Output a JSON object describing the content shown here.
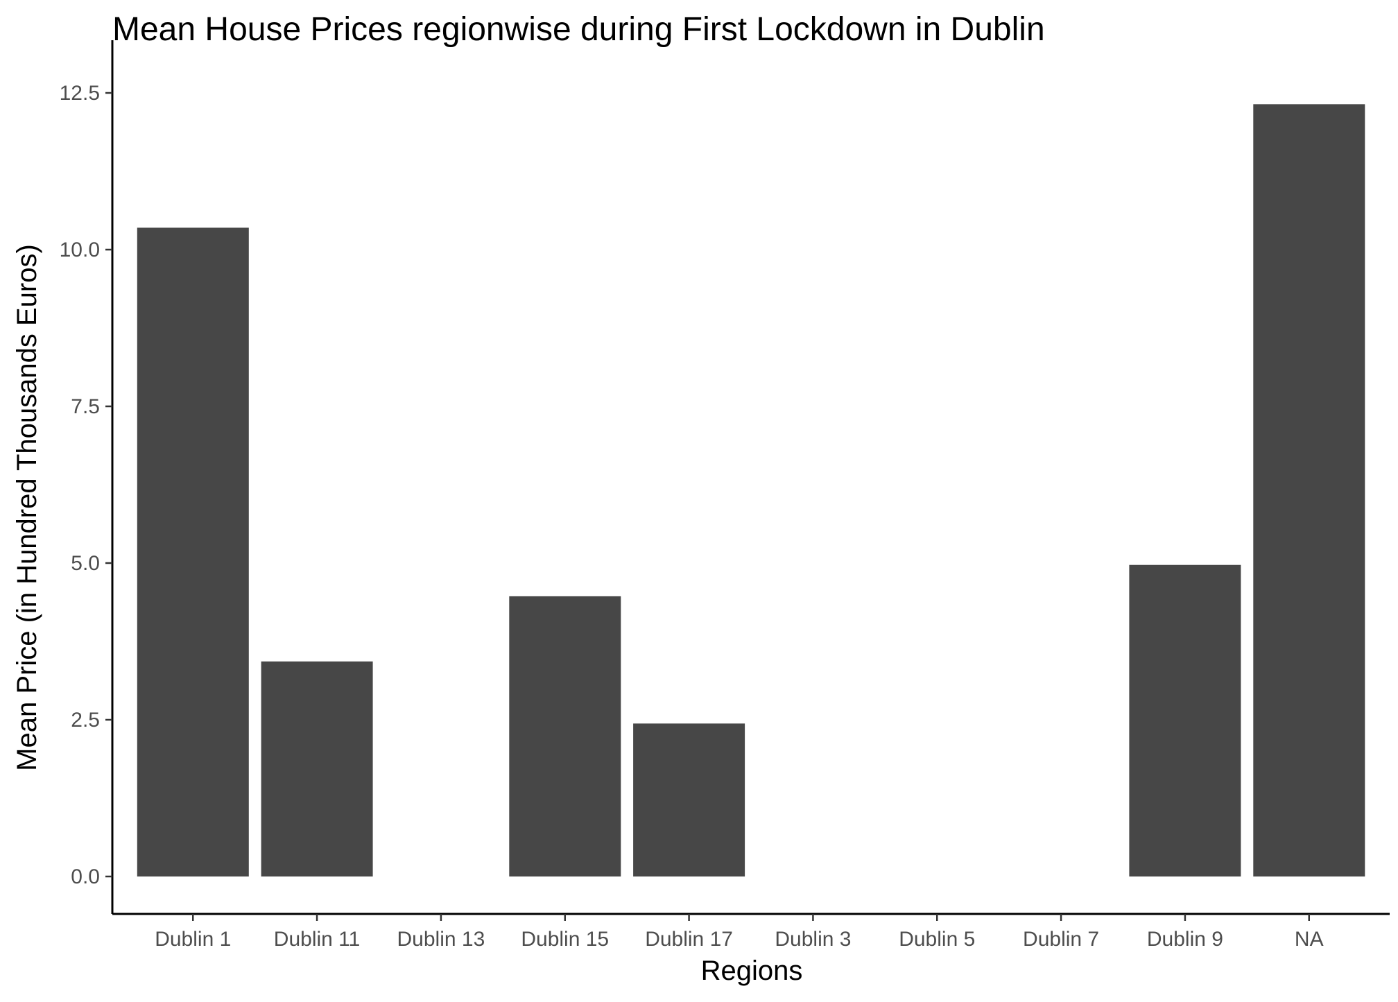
{
  "chart_data": {
    "type": "bar",
    "title": "Mean House Prices regionwise during First Lockdown in Dublin",
    "xlabel": "Regions",
    "ylabel": "Mean Price (in Hundred Thousands Euros)",
    "categories": [
      "Dublin 1",
      "Dublin 11",
      "Dublin 13",
      "Dublin 15",
      "Dublin 17",
      "Dublin 3",
      "Dublin 5",
      "Dublin 7",
      "Dublin 9",
      "NA"
    ],
    "values": [
      10.35,
      3.43,
      null,
      4.47,
      2.44,
      null,
      null,
      null,
      4.97,
      12.32
    ],
    "yticks": [
      "0.0",
      "2.5",
      "5.0",
      "7.5",
      "10.0",
      "12.5"
    ],
    "ylim": [
      -0.6,
      12.95
    ],
    "grid": false,
    "legend": "none",
    "bar_color": "#474747"
  }
}
